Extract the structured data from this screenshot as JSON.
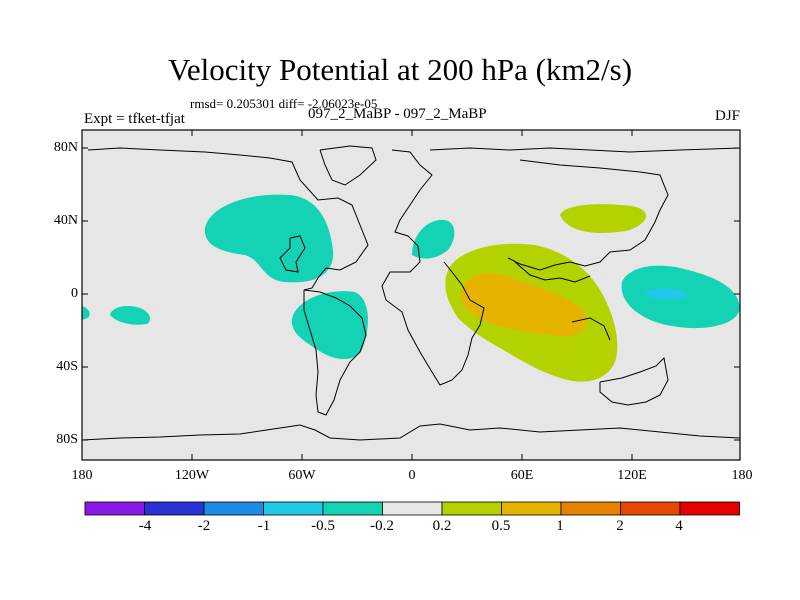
{
  "title": "Velocity Potential at 200 hPa (km2/s)",
  "stats_text": "rmsd= 0.205301 diff= -2.06023e-05",
  "left_label": "Expt = tfket-tfjat",
  "center_label": "097_2_MaBP - 097_2_MaBP",
  "right_label": "DJF",
  "lat_ticks": [
    "80N",
    "40N",
    "0",
    "40S",
    "80S"
  ],
  "lon_ticks": [
    "180",
    "120W",
    "60W",
    "0",
    "60E",
    "120E",
    "180"
  ],
  "colorbar": {
    "labels": [
      "-4",
      "-2",
      "-1",
      "-0.5",
      "-0.2",
      "0.2",
      "0.5",
      "1",
      "2",
      "4"
    ],
    "colors": [
      "#8a19e6",
      "#2832d2",
      "#1e8ce6",
      "#1ec8e6",
      "#14d2b4",
      "#e6e6e6",
      "#b4d200",
      "#e6b400",
      "#e68200",
      "#e64600",
      "#e60000"
    ]
  }
}
